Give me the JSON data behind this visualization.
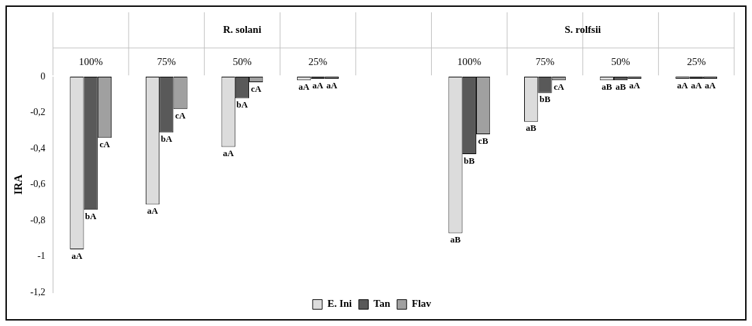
{
  "chart_data": {
    "type": "bar",
    "ylabel": "IRA",
    "categories": [
      "100%",
      "75%",
      "50%",
      "25%",
      null,
      "100%",
      "75%",
      "50%",
      "25%"
    ],
    "annotations": [
      "R. solani",
      "S. rolfsii"
    ],
    "series": [
      {
        "name": "E. Ini",
        "color": "#dcdcdc",
        "values": [
          -0.96,
          -0.71,
          -0.39,
          -0.02,
          null,
          -0.87,
          -0.25,
          -0.02,
          0
        ],
        "value_labels": [
          "aA",
          "aA",
          "aA",
          "aA",
          null,
          "aB",
          "aB",
          "aB",
          "aA"
        ]
      },
      {
        "name": "Tan",
        "color": "#595959",
        "values": [
          -0.74,
          -0.31,
          -0.12,
          0,
          null,
          -0.43,
          -0.09,
          -0.02,
          0
        ],
        "value_labels": [
          "bA",
          "bA",
          "bA",
          "aA",
          null,
          "bB",
          "bB",
          "aB",
          "aA"
        ]
      },
      {
        "name": "Flav",
        "color": "#a0a0a0",
        "values": [
          -0.34,
          -0.18,
          -0.03,
          0,
          null,
          -0.32,
          -0.02,
          0,
          0
        ],
        "value_labels": [
          "cA",
          "cA",
          "cA",
          "aA",
          null,
          "cB",
          "cA",
          "aA",
          "aA"
        ]
      }
    ],
    "ylim": [
      -1.2,
      0
    ],
    "yticks": [
      0,
      {
        "value": -0.2,
        "label": "-0,2"
      },
      {
        "value": -0.4,
        "label": "-0,4"
      },
      {
        "value": -0.6,
        "label": "-0,6"
      },
      {
        "value": -0.8,
        "label": "-0,8"
      },
      {
        "value": -1,
        "label": "-1"
      },
      {
        "value": -1.2,
        "label": "-1,2"
      }
    ],
    "grid": false,
    "legend": "bottom"
  }
}
